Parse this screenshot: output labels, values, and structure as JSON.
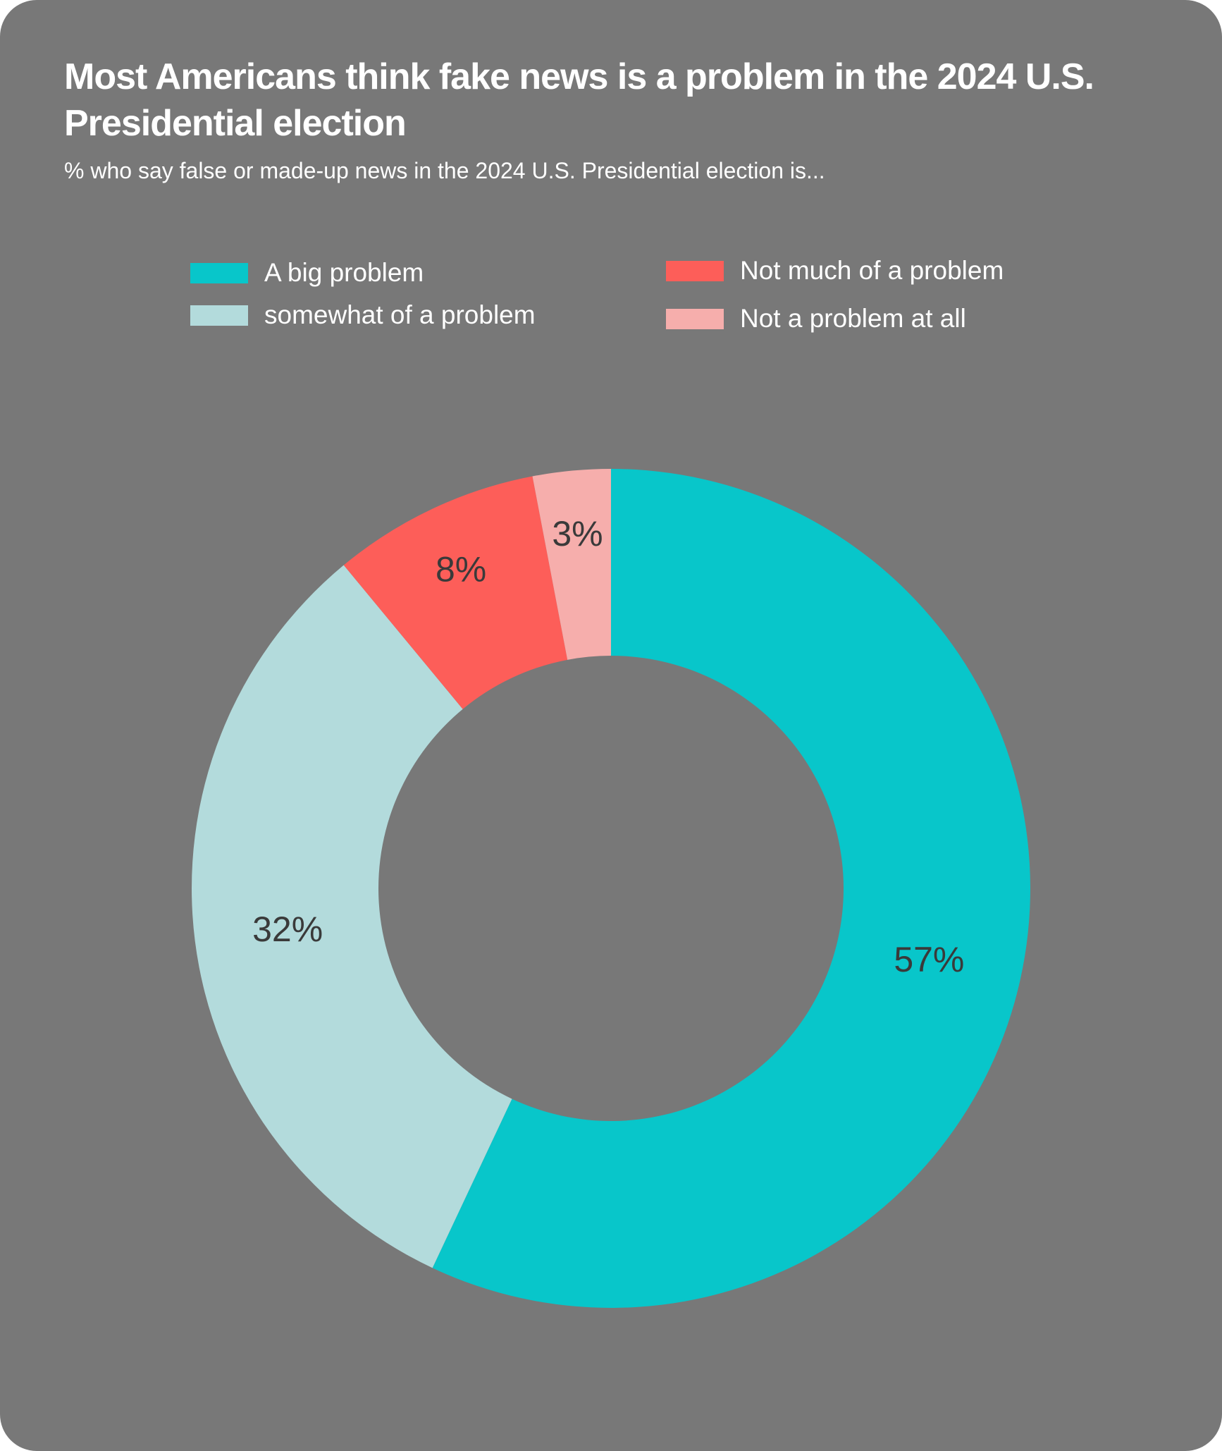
{
  "chart_data": {
    "type": "pie",
    "title": "Most Americans think fake news is a problem in the 2024 U.S. Presidential election",
    "subtitle": "% who say false or made-up news in the 2024 U.S. Presidential election is...",
    "donut": true,
    "legend_placement": "top",
    "slices": [
      {
        "label": "A big problem",
        "value": 57,
        "display": "57%",
        "color": "#08c6ca"
      },
      {
        "label": "somewhat of a problem",
        "value": 32,
        "display": "32%",
        "color": "#b3dbdc"
      },
      {
        "label": "Not much of a problem",
        "value": 8,
        "display": "8%",
        "color": "#fd5e59"
      },
      {
        "label": "Not a problem at all",
        "value": 3,
        "display": "3%",
        "color": "#f6aeac"
      }
    ]
  },
  "colors": {
    "background": "#787878",
    "title_text": "#ffffff",
    "label_text": "#3a3a3a"
  }
}
